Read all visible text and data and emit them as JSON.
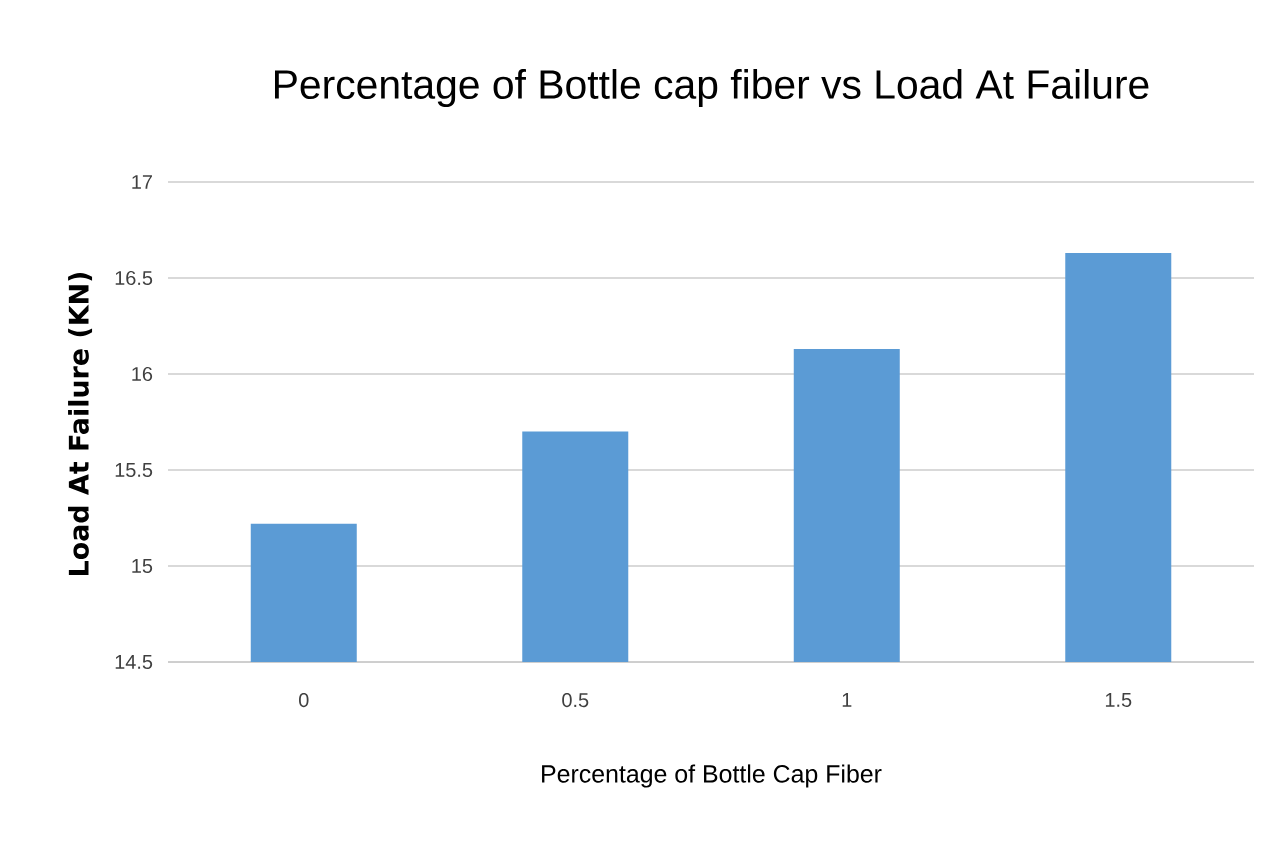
{
  "chart_data": {
    "type": "bar",
    "title": "Percentage of Bottle cap fiber vs Load At Failure",
    "xlabel": "Percentage of Bottle Cap Fiber",
    "ylabel": "Load At Failure (KN)",
    "categories": [
      "0",
      "0.5",
      "1",
      "1.5"
    ],
    "values": [
      15.22,
      15.7,
      16.13,
      16.63
    ],
    "color": "#5b9bd5",
    "ylim": [
      14.5,
      17
    ],
    "yticks": [
      14.5,
      15,
      15.5,
      16,
      16.5,
      17
    ],
    "grid": "y"
  }
}
